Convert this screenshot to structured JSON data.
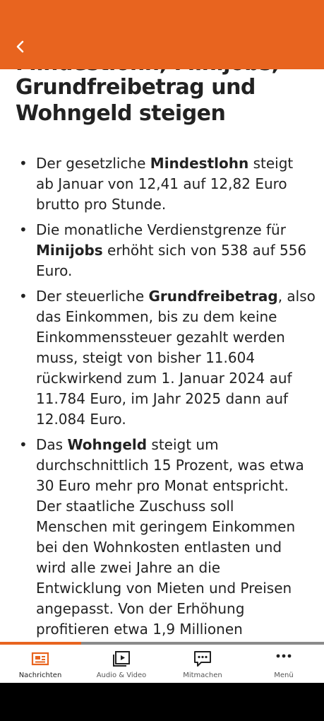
{
  "colors": {
    "accent": "#e8641f",
    "text": "#222222"
  },
  "header": {
    "back_icon": "chevron-left-icon"
  },
  "article": {
    "cut_heading": "Mindestlohn, Minijobs,",
    "headline_lines": [
      "Grundfreibetrag und",
      "Wohngeld steigen"
    ],
    "bullets": [
      {
        "lines": [
          [
            {
              "t": "Der gesetzliche "
            },
            {
              "t": "Mindestlohn",
              "b": true
            },
            {
              "t": " steigt"
            }
          ],
          [
            {
              "t": "ab Januar von 12,41 auf 12,82 Euro"
            }
          ],
          [
            {
              "t": "brutto pro Stunde."
            }
          ]
        ]
      },
      {
        "lines": [
          [
            {
              "t": "Die monatliche Verdienstgrenze für"
            }
          ],
          [
            {
              "t": "Minijobs",
              "b": true
            },
            {
              "t": " erhöht sich von 538 auf 556"
            }
          ],
          [
            {
              "t": "Euro."
            }
          ]
        ]
      },
      {
        "lines": [
          [
            {
              "t": "Der steuerliche "
            },
            {
              "t": "Grundfreibetrag",
              "b": true
            },
            {
              "t": ", also"
            }
          ],
          [
            {
              "t": "das Einkommen, bis zu dem keine"
            }
          ],
          [
            {
              "t": "Einkommenssteuer gezahlt werden"
            }
          ],
          [
            {
              "t": "muss, steigt von bisher 11.604"
            }
          ],
          [
            {
              "t": "rückwirkend zum 1. Januar 2024 auf"
            }
          ],
          [
            {
              "t": "11.784 Euro, im Jahr 2025 dann auf"
            }
          ],
          [
            {
              "t": "12.084 Euro."
            }
          ]
        ]
      },
      {
        "lines": [
          [
            {
              "t": "Das "
            },
            {
              "t": "Wohngeld",
              "b": true
            },
            {
              "t": " steigt um"
            }
          ],
          [
            {
              "t": "durchschnittlich 15 Prozent, was etwa"
            }
          ],
          [
            {
              "t": "30 Euro mehr pro Monat entspricht."
            }
          ],
          [
            {
              "t": "Der staatliche Zuschuss soll"
            }
          ],
          [
            {
              "t": "Menschen mit geringem Einkommen"
            }
          ],
          [
            {
              "t": "bei den Wohnkosten entlasten und"
            }
          ],
          [
            {
              "t": "wird alle zwei Jahre an die"
            }
          ],
          [
            {
              "t": "Entwicklung von Mieten und Preisen"
            }
          ],
          [
            {
              "t": "angepasst. Von der Erhöhung"
            }
          ],
          [
            {
              "t": "profitieren etwa 1,9 Millionen"
            }
          ]
        ]
      }
    ]
  },
  "reading_progress": 0.25,
  "tabs": [
    {
      "label": "Nachrichten",
      "icon": "news-icon",
      "active": true
    },
    {
      "label": "Audio & Video",
      "icon": "video-icon",
      "active": false
    },
    {
      "label": "Mitmachen",
      "icon": "chat-icon",
      "active": false
    },
    {
      "label": "Menü",
      "icon": "more-icon",
      "active": false
    }
  ]
}
